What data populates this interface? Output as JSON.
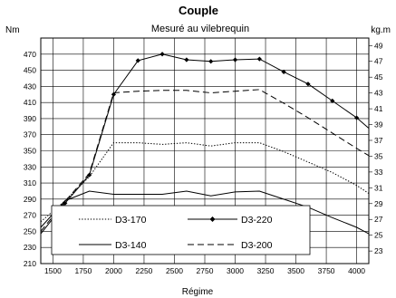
{
  "chart_data": {
    "type": "line",
    "title": "Couple",
    "subtitle": "Mesuré au vilebrequin",
    "xlabel": "Régime",
    "ylabel_left": "Nm",
    "ylabel_right": "kg.m",
    "xlim": [
      1400,
      4100
    ],
    "ylim": [
      210,
      490
    ],
    "y2lim": [
      21.41,
      49.95
    ],
    "xticks": [
      1500,
      1750,
      2000,
      2250,
      2500,
      2750,
      3000,
      3250,
      3500,
      3750,
      4000
    ],
    "yticks": [
      210,
      230,
      250,
      270,
      290,
      310,
      330,
      350,
      370,
      390,
      410,
      430,
      450,
      470
    ],
    "y2ticks": [
      23,
      25,
      27,
      29,
      31,
      33,
      35,
      37,
      39,
      41,
      43,
      45,
      47,
      49
    ],
    "grid": true,
    "legend_position": "bottom-left",
    "series": [
      {
        "name": "D3-170",
        "style": "dotted",
        "color": "#000000",
        "x": [
          1400,
          1600,
          1800,
          2000,
          2200,
          2400,
          2600,
          2800,
          3000,
          3200,
          3400,
          3600,
          3800,
          4000,
          4100
        ],
        "y": [
          262,
          288,
          318,
          360,
          360,
          358,
          360,
          356,
          360,
          360,
          349,
          336,
          323,
          307,
          297
        ]
      },
      {
        "name": "D3-220",
        "style": "solid-diamond",
        "color": "#000000",
        "x": [
          1400,
          1600,
          1800,
          2000,
          2200,
          2400,
          2600,
          2800,
          3000,
          3200,
          3400,
          3600,
          3800,
          4000,
          4100
        ],
        "y": [
          247,
          285,
          320,
          420,
          462,
          470,
          463,
          461,
          463,
          464,
          448,
          433,
          412,
          391,
          378
        ]
      },
      {
        "name": "D3-140",
        "style": "solid",
        "color": "#000000",
        "x": [
          1400,
          1600,
          1800,
          2000,
          2200,
          2400,
          2600,
          2800,
          3000,
          3200,
          3400,
          3600,
          3800,
          4000,
          4100
        ],
        "y": [
          255,
          288,
          300,
          296,
          296,
          296,
          300,
          294,
          299,
          300,
          290,
          280,
          267,
          255,
          247
        ]
      },
      {
        "name": "D3-200",
        "style": "dashed",
        "color": "#000000",
        "x": [
          1400,
          1600,
          1800,
          2000,
          2200,
          2400,
          2600,
          2800,
          3000,
          3200,
          3400,
          3600,
          3800,
          4000,
          4100
        ],
        "y": [
          250,
          287,
          322,
          422,
          424,
          425,
          425,
          422,
          424,
          426,
          409,
          391,
          372,
          353,
          344
        ]
      }
    ]
  }
}
